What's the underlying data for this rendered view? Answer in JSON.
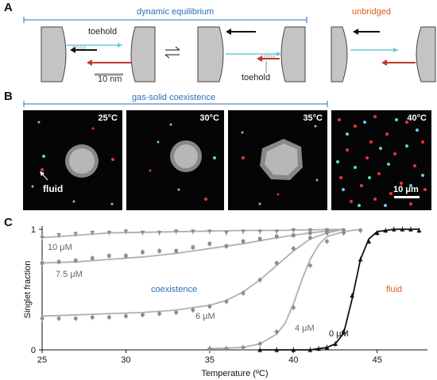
{
  "figure": {
    "panel_a": {
      "letter": "A",
      "bracket_label": "dynamic equilibrium",
      "unbridged_label": "unbridged",
      "toehold_top": "toehold",
      "toehold_bottom": "toehold",
      "scale_bar": "10 nm"
    },
    "panel_b": {
      "letter": "B",
      "bracket_label": "gas-solid coexistence",
      "images": [
        {
          "temp": "25°C"
        },
        {
          "temp": "30°C"
        },
        {
          "temp": "35°C"
        },
        {
          "temp": "40°C"
        }
      ],
      "fluid_label": "fluid",
      "scale_bar": "10 μm"
    },
    "panel_c": {
      "letter": "C",
      "coexistence_label": "coexistence",
      "fluid_label": "fluid"
    }
  },
  "colors": {
    "blue": "#2b6fb6",
    "orange": "#e05a1a",
    "cyan": "#6ccbd9",
    "red": "#c0392b",
    "gray_data": "#8c8c8c",
    "black": "#111111"
  },
  "chart_data": {
    "type": "scatter",
    "xlabel": "Temperature (ºC)",
    "ylabel": "Singlet fraction",
    "xlim": [
      25,
      48
    ],
    "ylim": [
      0,
      1
    ],
    "x_ticks": [
      "25",
      "30",
      "35",
      "40",
      "45"
    ],
    "y_ticks": [
      "0",
      "1"
    ],
    "series": [
      {
        "name": "10 μM",
        "marker": "triangle-down",
        "color": "#8c8c8c",
        "x": [
          25,
          26,
          27,
          28,
          29,
          30,
          31,
          32,
          33,
          34,
          35,
          36,
          37,
          38,
          39,
          40,
          41,
          42
        ],
        "y": [
          0.93,
          0.95,
          0.96,
          0.97,
          0.97,
          0.98,
          0.97,
          0.97,
          0.98,
          0.98,
          0.98,
          0.97,
          0.98,
          0.98,
          0.98,
          0.99,
          0.99,
          0.99
        ],
        "fit_x": [
          25,
          27,
          29,
          31,
          33,
          35,
          37,
          39,
          41,
          43
        ],
        "fit_y": [
          0.93,
          0.95,
          0.97,
          0.975,
          0.98,
          0.985,
          0.99,
          0.99,
          0.995,
          1.0
        ]
      },
      {
        "name": "7.5 μM",
        "marker": "square",
        "color": "#8c8c8c",
        "x": [
          25,
          26,
          27,
          28,
          29,
          30,
          31,
          32,
          33,
          34,
          35,
          36,
          37,
          38,
          39,
          40,
          41,
          42,
          43
        ],
        "y": [
          0.72,
          0.73,
          0.74,
          0.76,
          0.78,
          0.78,
          0.81,
          0.82,
          0.82,
          0.85,
          0.88,
          0.86,
          0.9,
          0.92,
          0.94,
          0.95,
          0.97,
          0.98,
          0.99
        ],
        "fit_x": [
          25,
          27,
          29,
          31,
          33,
          35,
          37,
          39,
          41,
          43
        ],
        "fit_y": [
          0.72,
          0.73,
          0.75,
          0.77,
          0.8,
          0.84,
          0.88,
          0.93,
          0.97,
          1.0
        ]
      },
      {
        "name": "6 μM",
        "marker": "circle",
        "color": "#8c8c8c",
        "x": [
          25,
          26,
          27,
          28,
          29,
          30,
          31,
          32,
          33,
          34,
          35,
          36,
          37,
          38,
          39,
          40,
          41,
          42,
          43
        ],
        "y": [
          0.26,
          0.26,
          0.26,
          0.27,
          0.27,
          0.28,
          0.29,
          0.3,
          0.31,
          0.33,
          0.36,
          0.4,
          0.47,
          0.58,
          0.72,
          0.84,
          0.93,
          0.97,
          0.99
        ],
        "fit_x": [
          25,
          27,
          29,
          31,
          33,
          35,
          36,
          37,
          38,
          39,
          40,
          41,
          42,
          43
        ],
        "fit_y": [
          0.28,
          0.29,
          0.3,
          0.31,
          0.33,
          0.37,
          0.41,
          0.48,
          0.58,
          0.7,
          0.82,
          0.92,
          0.97,
          1.0
        ]
      },
      {
        "name": "4 μM",
        "marker": "diamond",
        "color": "#8c8c8c",
        "x": [
          35,
          36,
          37,
          38,
          39,
          40,
          41,
          42,
          43,
          44
        ],
        "y": [
          0.01,
          0.01,
          0.02,
          0.05,
          0.15,
          0.35,
          0.7,
          0.9,
          0.97,
          0.99
        ],
        "fit_x": [
          35,
          37,
          38,
          39,
          39.5,
          40,
          40.5,
          41,
          41.5,
          42,
          43,
          44
        ],
        "fit_y": [
          0.01,
          0.02,
          0.05,
          0.13,
          0.22,
          0.38,
          0.58,
          0.75,
          0.87,
          0.94,
          0.98,
          1.0
        ]
      },
      {
        "name": "0 μM",
        "marker": "triangle-up",
        "color": "#111111",
        "x": [
          38,
          39,
          40,
          41,
          41.5,
          42,
          42.5,
          43,
          43.5,
          44,
          44.5,
          45,
          45.5,
          46,
          46.5,
          47,
          47.5
        ],
        "y": [
          0.0,
          0.0,
          0.0,
          0.0,
          0.01,
          0.02,
          0.05,
          0.15,
          0.45,
          0.75,
          0.9,
          0.97,
          0.99,
          1.0,
          1.0,
          1.0,
          0.99
        ],
        "fit_x": [
          38,
          40,
          41,
          42,
          42.5,
          43,
          43.5,
          44,
          44.5,
          45,
          46,
          47.5
        ],
        "fit_y": [
          0.0,
          0.0,
          0.0,
          0.02,
          0.05,
          0.14,
          0.42,
          0.75,
          0.92,
          0.98,
          1.0,
          1.0
        ]
      }
    ]
  }
}
